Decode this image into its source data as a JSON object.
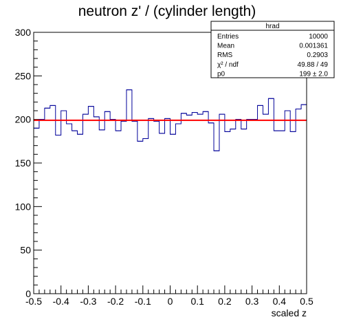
{
  "chart_data": {
    "type": "bar",
    "title": "neutron z' / (cylinder length)",
    "xlabel": "scaled z",
    "ylabel": "",
    "xlim": [
      -0.5,
      0.5
    ],
    "ylim": [
      0,
      300
    ],
    "bins": 50,
    "bin_width": 0.02,
    "x_ticks": [
      "-0.5",
      "-0.4",
      "-0.3",
      "-0.2",
      "-0.1",
      "0",
      "0.1",
      "0.2",
      "0.3",
      "0.4",
      "0.5"
    ],
    "x_tick_values": [
      -0.5,
      -0.4,
      -0.3,
      -0.2,
      -0.1,
      0,
      0.1,
      0.2,
      0.3,
      0.4,
      0.5
    ],
    "y_ticks": [
      "0",
      "50",
      "100",
      "150",
      "200",
      "250",
      "300"
    ],
    "y_tick_values": [
      0,
      50,
      100,
      150,
      200,
      250,
      300
    ],
    "series": [
      {
        "values": [
          190,
          200,
          213,
          216,
          182,
          210,
          195,
          187,
          183,
          206,
          215,
          203,
          188,
          209,
          200,
          187,
          198,
          234,
          198,
          175,
          178,
          201,
          198,
          184,
          201,
          183,
          195,
          207,
          205,
          208,
          206,
          209,
          196,
          164,
          206,
          186,
          189,
          200,
          189,
          200,
          200,
          216,
          206,
          224,
          187,
          187,
          210,
          186,
          212,
          217
        ],
        "color": "#000099"
      }
    ],
    "fit": {
      "function": "p0",
      "value": 199,
      "color": "#ff0000"
    },
    "grid": false,
    "legend": "none",
    "stats_box": {
      "title": "hrad",
      "rows": [
        {
          "label": "Entries",
          "value": "10000"
        },
        {
          "label": "Mean",
          "value": "0.001361"
        },
        {
          "label": "RMS",
          "value": "0.2903"
        },
        {
          "label": "χ² / ndf",
          "value": "49.88 / 49"
        },
        {
          "label": "p0",
          "value": "199  ± 2.0"
        }
      ]
    }
  }
}
